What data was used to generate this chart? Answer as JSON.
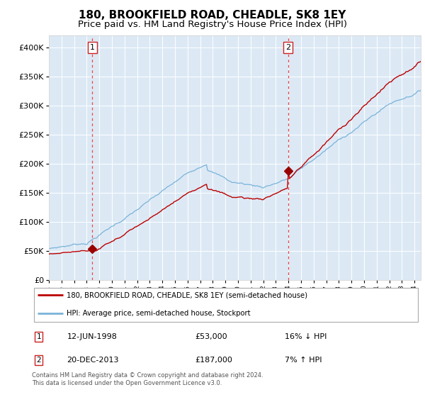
{
  "title": "180, BROOKFIELD ROAD, CHEADLE, SK8 1EY",
  "subtitle": "Price paid vs. HM Land Registry's House Price Index (HPI)",
  "title_fontsize": 11,
  "subtitle_fontsize": 9.5,
  "background_color": "#ffffff",
  "plot_bg_color": "#dce9f5",
  "grid_color": "#ffffff",
  "sale1_date_year": 1998.45,
  "sale1_price": 53000,
  "sale2_date_year": 2013.97,
  "sale2_price": 187000,
  "hpi_line_color": "#7ab3d9",
  "price_line_color": "#bb0000",
  "sale_marker_color": "#990000",
  "vline_color": "#ee4444",
  "ylim": [
    0,
    420000
  ],
  "xlim_start": 1995,
  "xlim_end": 2024.5,
  "legend_entry1": "180, BROOKFIELD ROAD, CHEADLE, SK8 1EY (semi-detached house)",
  "legend_entry2": "HPI: Average price, semi-detached house, Stockport",
  "table_row1_num": "1",
  "table_row1_date": "12-JUN-1998",
  "table_row1_price": "£53,000",
  "table_row1_hpi": "16% ↓ HPI",
  "table_row2_num": "2",
  "table_row2_date": "20-DEC-2013",
  "table_row2_price": "£187,000",
  "table_row2_hpi": "7% ↑ HPI",
  "footnote": "Contains HM Land Registry data © Crown copyright and database right 2024.\nThis data is licensed under the Open Government Licence v3.0."
}
